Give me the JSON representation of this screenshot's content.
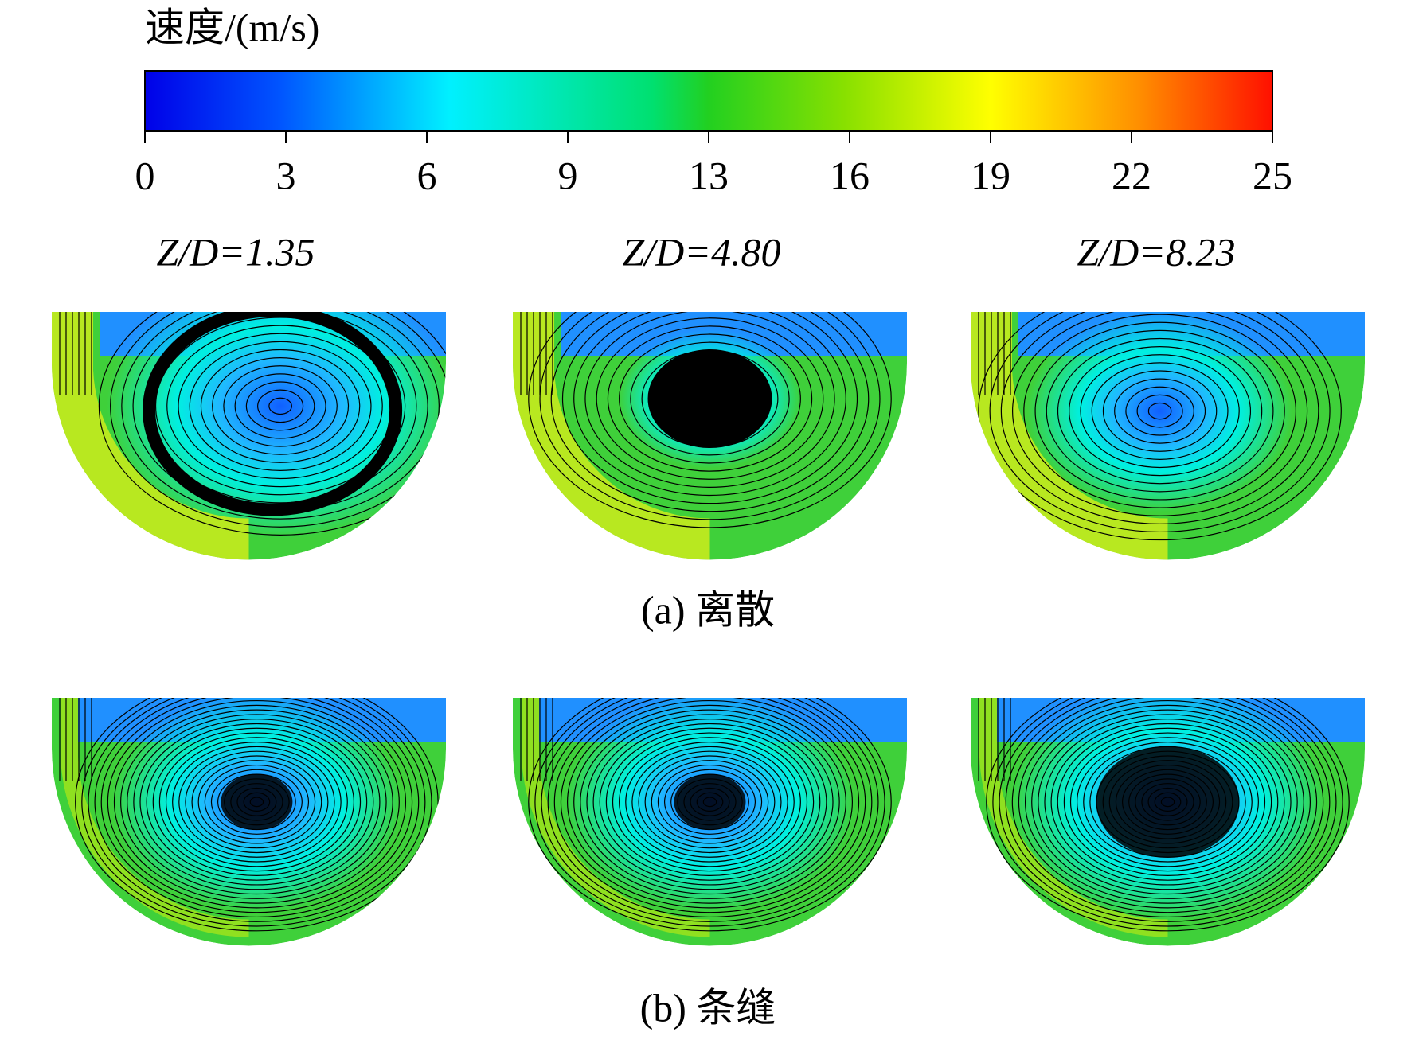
{
  "colorbar": {
    "title": "速度/(m/s)",
    "range": [
      0,
      25
    ],
    "ticks": [
      0,
      {
        "value": 3.125,
        "label": "3"
      },
      {
        "value": 6.25,
        "label": "6"
      },
      {
        "value": 9.375,
        "label": "9"
      },
      {
        "value": 12.5,
        "label": "13"
      },
      {
        "value": 15.625,
        "label": "16"
      },
      {
        "value": 18.75,
        "label": "19"
      },
      {
        "value": 21.875,
        "label": "22"
      },
      25
    ]
  },
  "column_labels": [
    "Z/D=1.35",
    "Z/D=4.80",
    "Z/D=8.23"
  ],
  "row_captions": [
    "(a) 离散",
    "(b) 条缝"
  ]
}
